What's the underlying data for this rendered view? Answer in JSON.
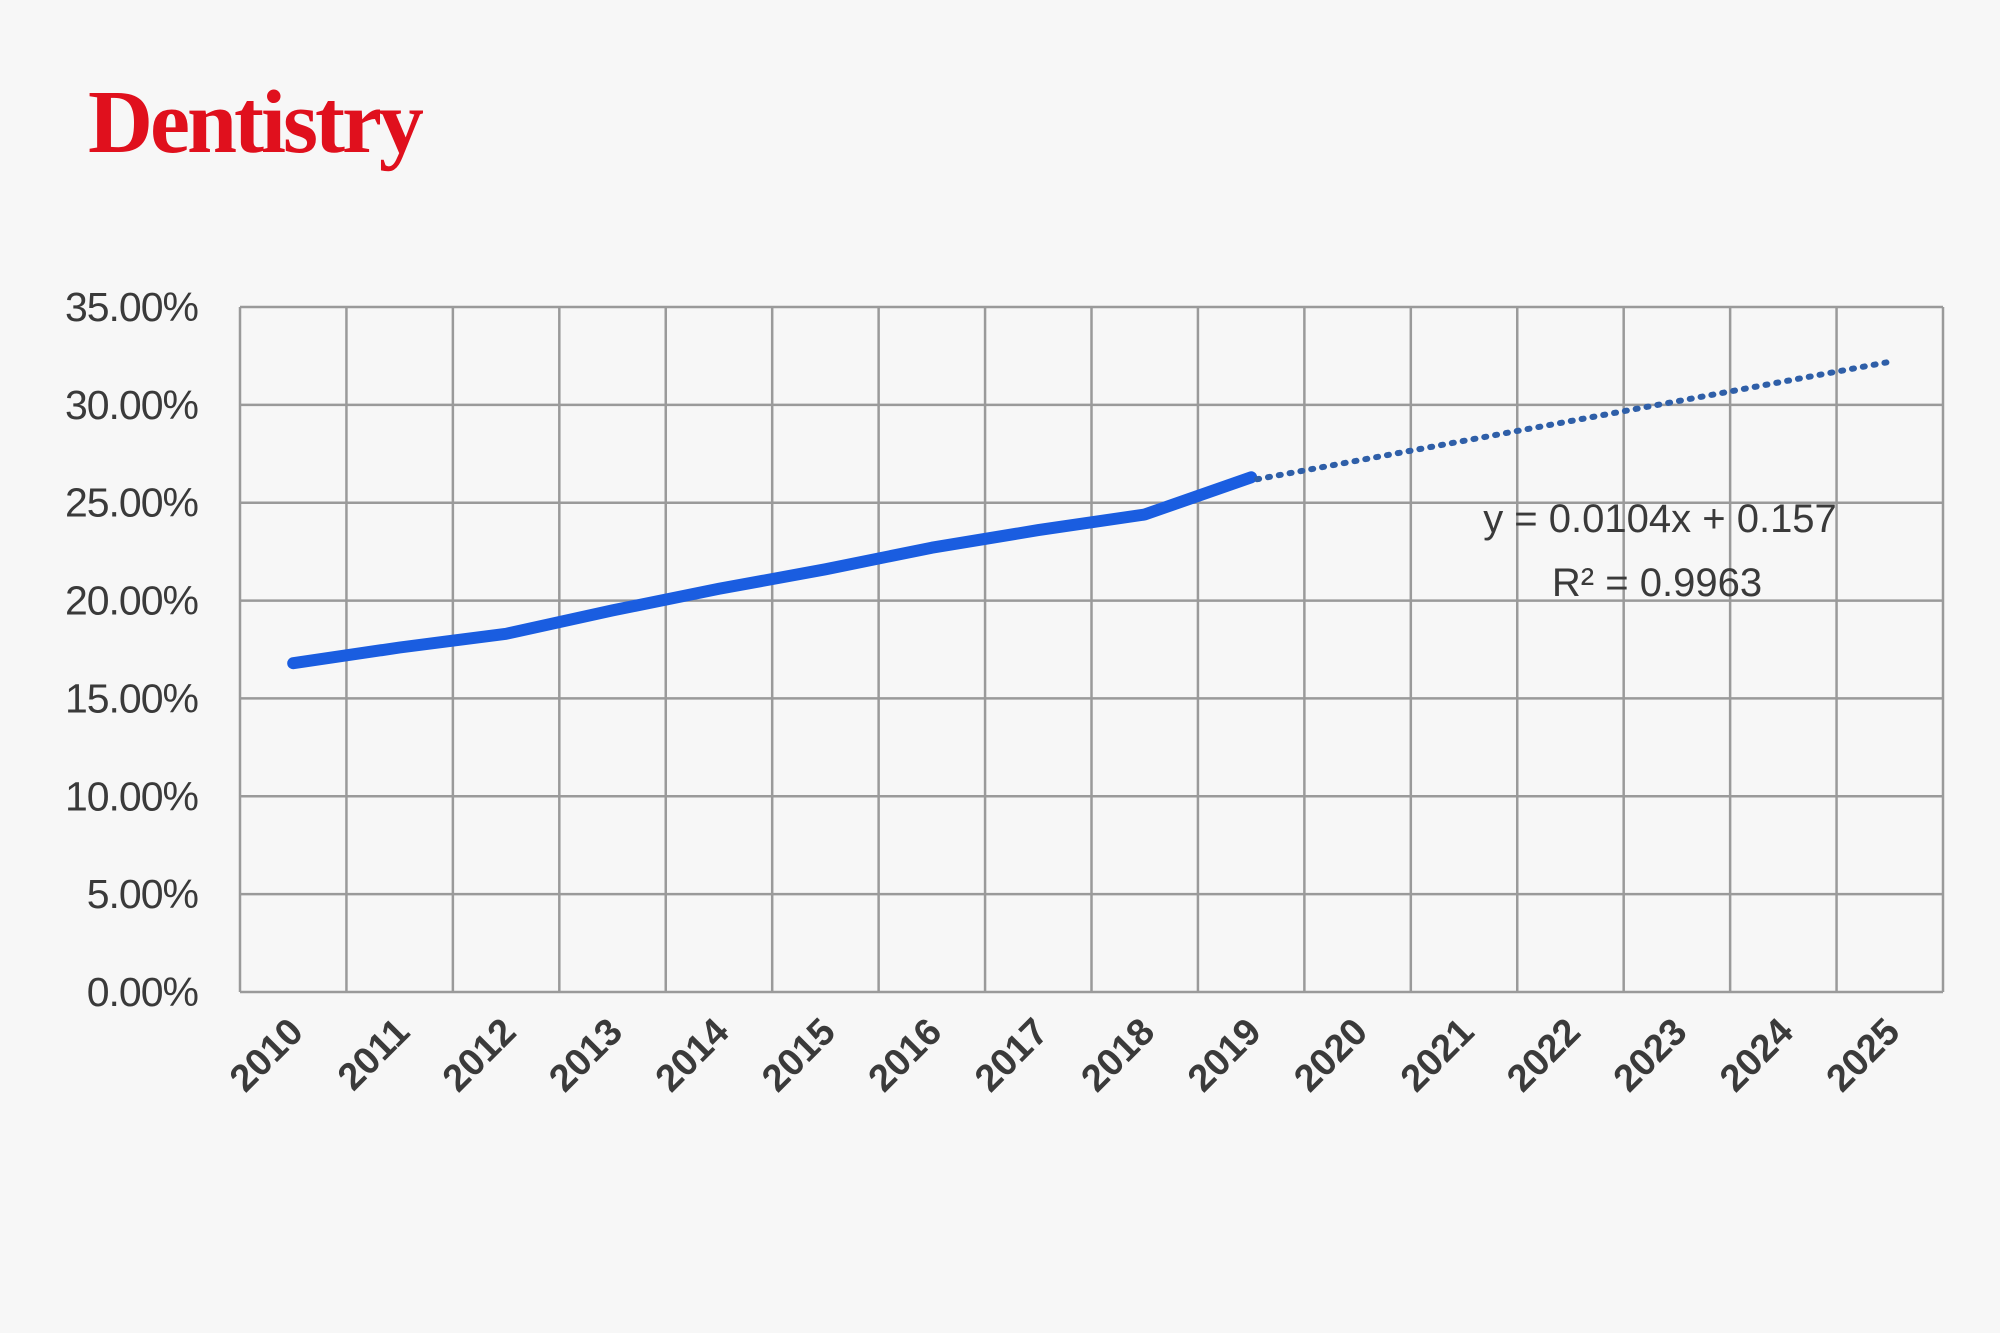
{
  "brand": {
    "name": "Dentistry"
  },
  "colors": {
    "brand": "#e0101d",
    "series": "#1a5de0",
    "trend": "#2f5fa8",
    "grid": "#9a9a9a",
    "text": "#3a3a3a"
  },
  "chart_data": {
    "type": "line",
    "title": "",
    "xlabel": "",
    "ylabel": "",
    "categories": [
      "2010",
      "2011",
      "2012",
      "2013",
      "2014",
      "2015",
      "2016",
      "2017",
      "2018",
      "2019",
      "2020",
      "2021",
      "2022",
      "2023",
      "2024",
      "2025"
    ],
    "ylim": [
      0,
      0.35
    ],
    "y_ticks": [
      0,
      0.05,
      0.1,
      0.15,
      0.2,
      0.25,
      0.3,
      0.35
    ],
    "y_tick_labels": [
      "0.00%",
      "5.00%",
      "10.00%",
      "15.00%",
      "20.00%",
      "25.00%",
      "30.00%",
      "35.00%"
    ],
    "grid": true,
    "series": [
      {
        "style": "solid",
        "x": [
          "2010",
          "2011",
          "2012",
          "2013",
          "2014",
          "2015",
          "2016",
          "2017",
          "2018",
          "2019"
        ],
        "values": [
          0.168,
          0.176,
          0.183,
          0.195,
          0.206,
          0.216,
          0.227,
          0.236,
          0.244,
          0.263
        ]
      }
    ],
    "trendline": {
      "style": "dotted",
      "x_start": "2019",
      "x_end": "2025",
      "values": [
        0.262,
        0.322
      ],
      "equation": "y = 0.0104x + 0.157",
      "r_squared": "R² = 0.9963"
    }
  }
}
